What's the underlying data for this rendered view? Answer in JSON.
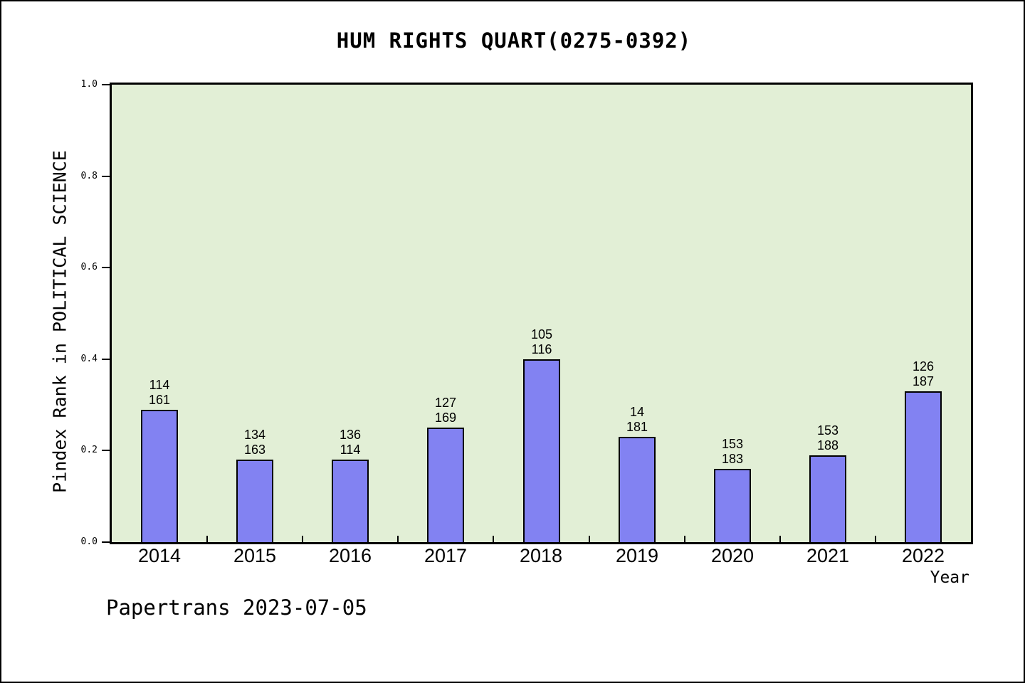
{
  "chart_data": {
    "type": "bar",
    "title": "HUM RIGHTS QUART(0275-0392)",
    "xlabel": "Year",
    "ylabel": "Pindex Rank in POLITICAL SCIENCE",
    "categories": [
      "2014",
      "2015",
      "2016",
      "2017",
      "2018",
      "2019",
      "2020",
      "2021",
      "2022"
    ],
    "values": [
      0.29,
      0.18,
      0.18,
      0.25,
      0.4,
      0.23,
      0.16,
      0.19,
      0.33
    ],
    "bar_labels": [
      [
        "114",
        "161"
      ],
      [
        "134",
        "163"
      ],
      [
        "136",
        "114"
      ],
      [
        "127",
        "169"
      ],
      [
        "105",
        "116"
      ],
      [
        "14",
        "181"
      ],
      [
        "153",
        "183"
      ],
      [
        "153",
        "188"
      ],
      [
        "126",
        "187"
      ]
    ],
    "ylim": [
      0.0,
      1.0
    ],
    "ytick_values": [
      0.0,
      0.2,
      0.4,
      0.6,
      0.8,
      1.0
    ],
    "ytick_labels": [
      "0.0",
      "0.2",
      "0.4",
      "0.6",
      "0.8",
      "1.0"
    ],
    "grid": false,
    "legend_position": "none",
    "colors": {
      "bar_fill": "#8282f2",
      "bar_edge": "#000000",
      "plot_background": "#e2efd6",
      "frame": "#000000",
      "text": "#000000"
    }
  },
  "footer": {
    "text": "Papertrans 2023-07-05"
  }
}
